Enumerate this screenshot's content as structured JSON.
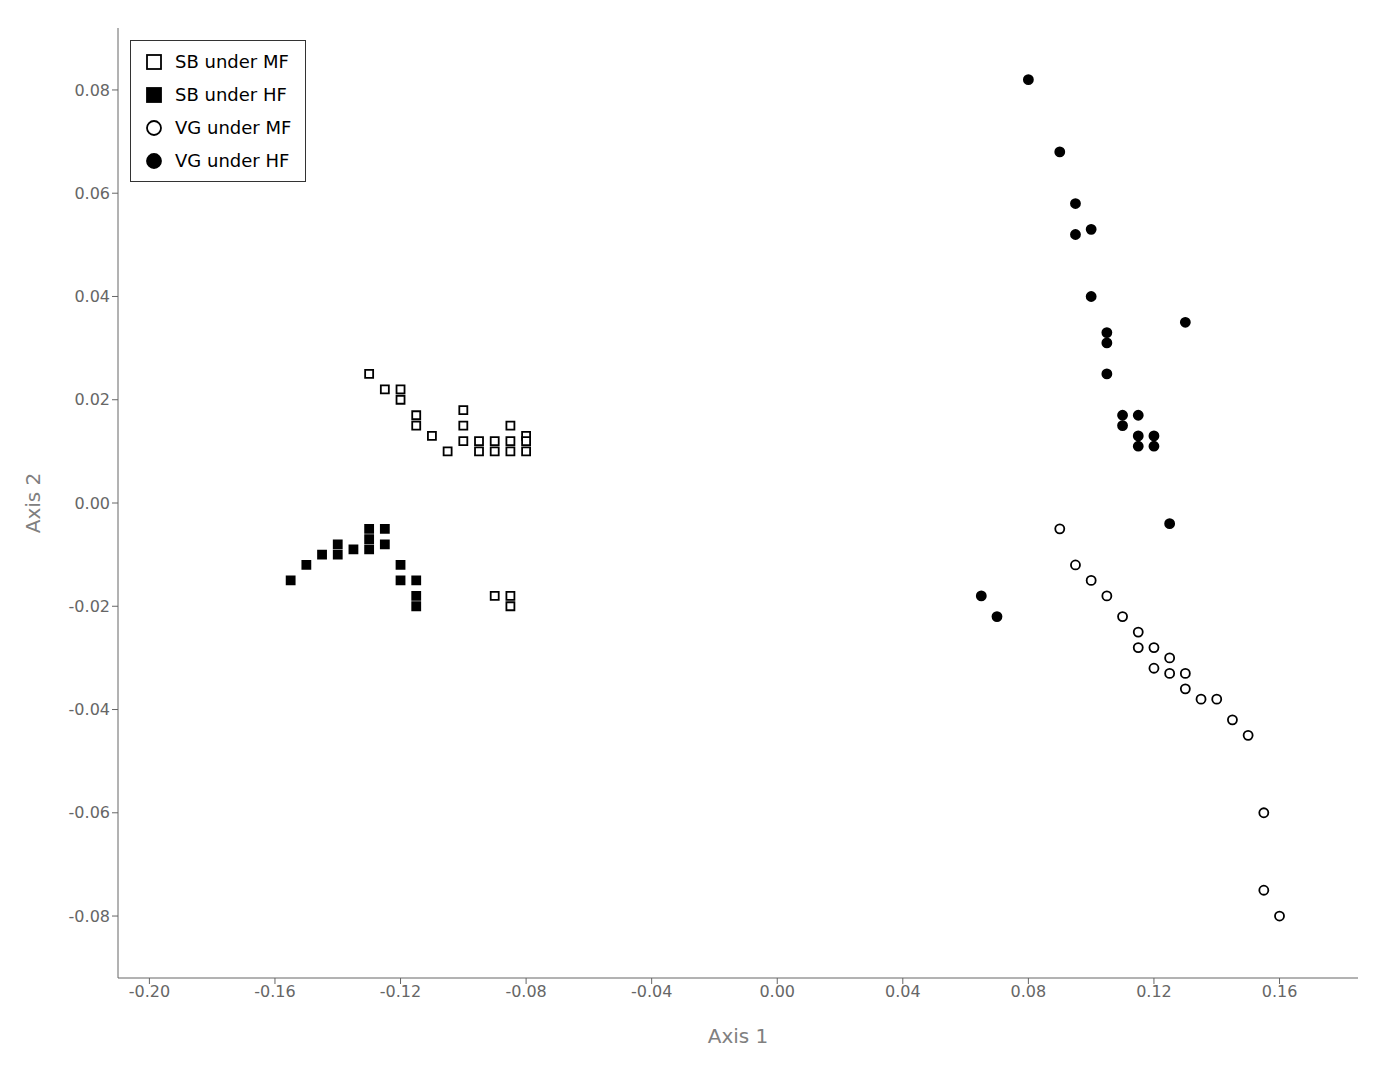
{
  "chart_data": {
    "type": "scatter",
    "x_label": "Axis 1",
    "y_label": "Axis 2",
    "xlim": [
      -0.21,
      0.185
    ],
    "ylim": [
      -0.092,
      0.092
    ],
    "xticks": [
      {
        "value": -0.2,
        "label": "-0.20"
      },
      -0.16,
      -0.12,
      -0.08,
      -0.04,
      {
        "value": 0,
        "label": "0.00"
      },
      0.04,
      0.08,
      0.12,
      0.16
    ],
    "yticks": [
      -0.08,
      -0.06,
      -0.04,
      -0.02,
      {
        "value": 0,
        "label": "0.00"
      },
      0.02,
      0.04,
      0.06,
      0.08
    ],
    "grid": false,
    "legend": "upper left",
    "series": [
      {
        "name": "SB under MF",
        "color": "#ffffff",
        "marker": "square",
        "x": [
          -0.13,
          -0.125,
          -0.12,
          -0.12,
          -0.115,
          -0.115,
          -0.11,
          -0.105,
          -0.1,
          -0.1,
          -0.1,
          -0.095,
          -0.095,
          -0.09,
          -0.09,
          -0.085,
          -0.085,
          -0.085,
          -0.08,
          -0.08,
          -0.08,
          -0.09,
          -0.085,
          -0.085
        ],
        "y": [
          0.025,
          0.022,
          0.022,
          0.02,
          0.017,
          0.015,
          0.013,
          0.01,
          0.018,
          0.015,
          0.012,
          0.012,
          0.01,
          0.01,
          0.012,
          0.01,
          0.012,
          0.015,
          0.013,
          0.012,
          0.01,
          -0.018,
          -0.018,
          -0.02
        ]
      },
      {
        "name": "SB under HF",
        "color": "#000000",
        "marker": "square",
        "x": [
          -0.155,
          -0.15,
          -0.145,
          -0.14,
          -0.14,
          -0.135,
          -0.13,
          -0.13,
          -0.13,
          -0.125,
          -0.125,
          -0.12,
          -0.12,
          -0.115,
          -0.115,
          -0.115
        ],
        "y": [
          -0.015,
          -0.012,
          -0.01,
          -0.008,
          -0.01,
          -0.009,
          -0.005,
          -0.007,
          -0.009,
          -0.005,
          -0.008,
          -0.012,
          -0.015,
          -0.015,
          -0.018,
          -0.02
        ]
      },
      {
        "name": "VG under MF",
        "color": "#ffffff",
        "marker": "circle",
        "x": [
          0.09,
          0.095,
          0.1,
          0.105,
          0.11,
          0.115,
          0.115,
          0.12,
          0.12,
          0.125,
          0.125,
          0.13,
          0.13,
          0.135,
          0.14,
          0.145,
          0.15,
          0.155,
          0.155,
          0.16
        ],
        "y": [
          -0.005,
          -0.012,
          -0.015,
          -0.018,
          -0.022,
          -0.025,
          -0.028,
          -0.028,
          -0.032,
          -0.03,
          -0.033,
          -0.033,
          -0.036,
          -0.038,
          -0.038,
          -0.042,
          -0.045,
          -0.06,
          -0.075,
          -0.08
        ]
      },
      {
        "name": "VG under HF",
        "color": "#000000",
        "marker": "circle",
        "x": [
          0.08,
          0.09,
          0.095,
          0.095,
          0.1,
          0.1,
          0.105,
          0.105,
          0.105,
          0.11,
          0.11,
          0.115,
          0.115,
          0.115,
          0.12,
          0.12,
          0.125,
          0.13,
          0.065,
          0.07
        ],
        "y": [
          0.082,
          0.068,
          0.058,
          0.052,
          0.053,
          0.04,
          0.033,
          0.031,
          0.025,
          0.017,
          0.015,
          0.013,
          0.011,
          0.017,
          0.013,
          0.011,
          -0.004,
          0.035,
          -0.018,
          -0.022
        ]
      }
    ]
  }
}
